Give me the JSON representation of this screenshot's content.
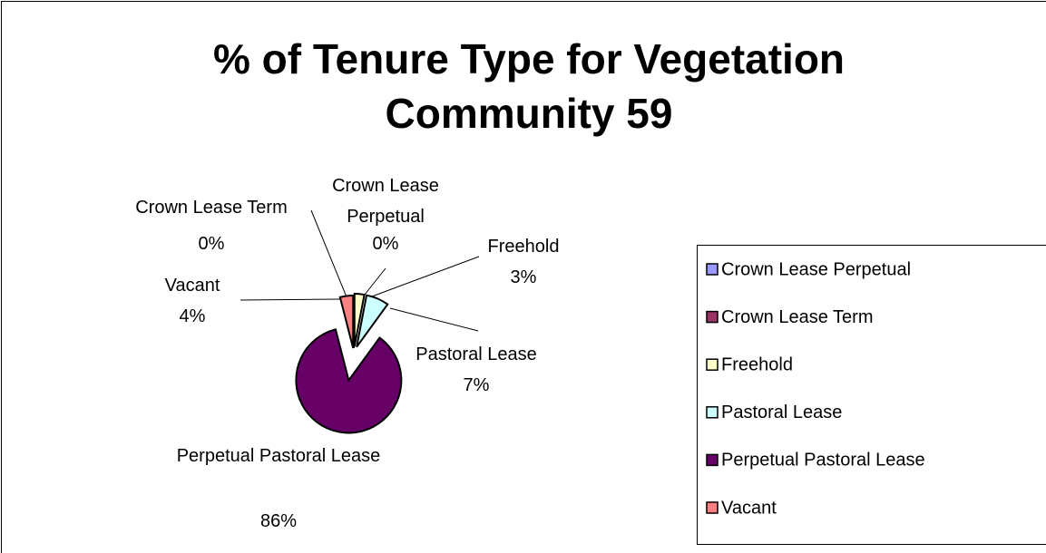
{
  "chart_data": {
    "type": "pie",
    "title": "% of Tenure Type for Vegetation Community 59",
    "categories": [
      "Crown Lease Perpetual",
      "Crown Lease Term",
      "Freehold",
      "Pastoral Lease",
      "Perpetual Pastoral Lease",
      "Vacant"
    ],
    "values": [
      0,
      0,
      3,
      7,
      86,
      4
    ],
    "value_labels": [
      "0%",
      "0%",
      "3%",
      "7%",
      "86%",
      "4%"
    ],
    "colors": [
      "#9999ff",
      "#993366",
      "#ffffcc",
      "#ccffff",
      "#660066",
      "#ff8080"
    ],
    "legend": "right"
  }
}
